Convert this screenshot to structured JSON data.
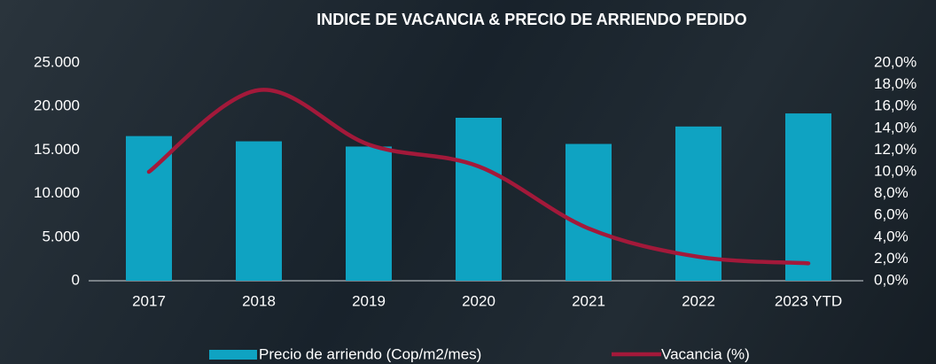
{
  "chart_data": {
    "type": "bar",
    "title": "INDICE DE VACANCIA & PRECIO DE ARRIENDO PEDIDO",
    "categories": [
      "2017",
      "2018",
      "2019",
      "2020",
      "2021",
      "2022",
      "2023 YTD"
    ],
    "series": [
      {
        "name": "Precio de arriendo (Cop/m2/mes)",
        "type": "bar",
        "color": "#0fa3c2",
        "values": [
          16600,
          16000,
          15400,
          18700,
          15700,
          17700,
          19200
        ]
      },
      {
        "name": "Vacancia (%)",
        "type": "line",
        "axis": "y2",
        "smooth": true,
        "color": "#a3193a",
        "values": [
          10.0,
          17.5,
          12.5,
          10.5,
          4.8,
          2.2,
          1.6
        ]
      }
    ],
    "ylim": [
      0,
      25000
    ],
    "yticks": [
      {
        "value": 0,
        "label": "0"
      },
      {
        "value": 5000,
        "label": "5.000"
      },
      {
        "value": 10000,
        "label": "10.000"
      },
      {
        "value": 15000,
        "label": "15.000"
      },
      {
        "value": 20000,
        "label": "20.000"
      },
      {
        "value": 25000,
        "label": "25.000"
      }
    ],
    "y2lim": [
      0,
      20
    ],
    "y2ticks": [
      {
        "value": 0,
        "label": "0,0%"
      },
      {
        "value": 2,
        "label": "2,0%"
      },
      {
        "value": 4,
        "label": "4,0%"
      },
      {
        "value": 6,
        "label": "6,0%"
      },
      {
        "value": 8,
        "label": "8,0%"
      },
      {
        "value": 10,
        "label": "10,0%"
      },
      {
        "value": 12,
        "label": "12,0%"
      },
      {
        "value": 14,
        "label": "14,0%"
      },
      {
        "value": 16,
        "label": "16,0%"
      },
      {
        "value": 18,
        "label": "18,0%"
      },
      {
        "value": 20,
        "label": "20,0%"
      }
    ],
    "grid": false
  }
}
